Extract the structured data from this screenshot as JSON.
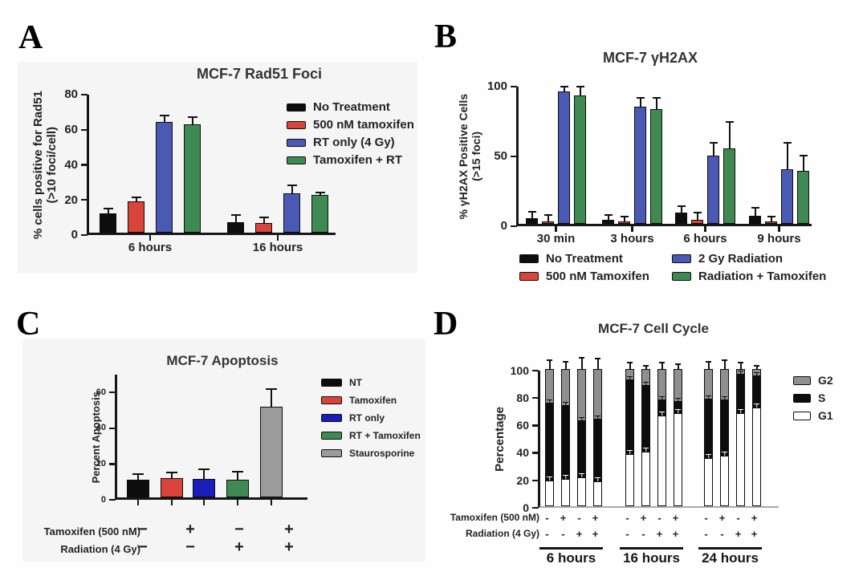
{
  "panels": {
    "a": {
      "letter": "A"
    },
    "b": {
      "letter": "B"
    },
    "c": {
      "letter": "C"
    },
    "d": {
      "letter": "D"
    }
  },
  "chart_data": [
    {
      "type": "bar",
      "title": "MCF-7 Rad51 Foci",
      "ylabel": [
        "% cells positive for Rad51",
        "(>10 foci/cell)"
      ],
      "categories": [
        "6 hours",
        "16 hours"
      ],
      "series": [
        {
          "name": "No Treatment",
          "color": "#0d0d0d",
          "values": [
            11,
            6
          ],
          "errors": [
            3,
            4.5
          ]
        },
        {
          "name": "500 nM tamoxifen",
          "color": "#d9453a",
          "values": [
            18,
            5.5
          ],
          "errors": [
            2.5,
            3.5
          ]
        },
        {
          "name": "RT only (4 Gy)",
          "color": "#4a5ab4",
          "values": [
            63,
            22.5
          ],
          "errors": [
            4,
            5
          ]
        },
        {
          "name": "Tamoxifen + RT",
          "color": "#3e8a52",
          "values": [
            61.5,
            21.5
          ],
          "errors": [
            5,
            2
          ]
        }
      ],
      "ylim": [
        0,
        80
      ],
      "yticks": [
        0,
        20,
        40,
        60,
        80
      ],
      "legend_position": "right",
      "grid": false
    },
    {
      "type": "bar",
      "title": "MCF-7 γH2AX",
      "ylabel": [
        "% γH2AX Positive Cells",
        "(>15 foci)"
      ],
      "categories": [
        "30 min",
        "3 hours",
        "6 hours",
        "9 hours"
      ],
      "series": [
        {
          "name": "No Treatment",
          "color": "#0d0d0d",
          "values": [
            4,
            3,
            8,
            6
          ],
          "errors": [
            5,
            4,
            5,
            6
          ]
        },
        {
          "name": "500 nM Tamoxifen",
          "color": "#d9453a",
          "values": [
            2,
            1.5,
            3,
            2
          ],
          "errors": [
            5,
            4,
            5.5,
            4
          ]
        },
        {
          "name": "2 Gy Radiation",
          "color": "#4a5ab4",
          "values": [
            95,
            84,
            49,
            39
          ],
          "errors": [
            4,
            7,
            9.5,
            19.5
          ]
        },
        {
          "name": "Radiation + Tamoxifen",
          "color": "#3e8a52",
          "values": [
            92,
            82,
            54,
            38
          ],
          "errors": [
            7,
            9,
            19.5,
            11.5
          ]
        }
      ],
      "ylim": [
        0,
        100
      ],
      "yticks": [
        0,
        50,
        100
      ],
      "legend_position": "bottom",
      "grid": false
    },
    {
      "type": "bar",
      "title": "MCF-7 Apoptosis",
      "ylabel": [
        "Percent Apoptosis"
      ],
      "bars": [
        {
          "label": "NT",
          "color": "#0d0d0d",
          "value": 10,
          "error": 3.5
        },
        {
          "label": "Tamoxifen",
          "color": "#d9453a",
          "value": 11,
          "error": 3.5
        },
        {
          "label": "RT only",
          "color": "#1c1cba",
          "value": 10.5,
          "error": 5.5
        },
        {
          "label": "RT + Tamoxifen",
          "color": "#3e8a52",
          "value": 10,
          "error": 5
        },
        {
          "label": "Staurosporine",
          "color": "#9b9b9b",
          "value": 50.5,
          "error": 10.5
        }
      ],
      "ylim": [
        0,
        70
      ],
      "yticks": [
        0,
        20,
        40,
        60
      ],
      "legend_position": "right",
      "treatment_rows": [
        {
          "label": "Tamoxifen (500 nM)",
          "signs": [
            "−",
            "+",
            "−",
            "+"
          ]
        },
        {
          "label": "Radiation (4 Gy)",
          "signs": [
            "−",
            "−",
            "+",
            "+"
          ]
        }
      ],
      "grid": false
    },
    {
      "type": "bar",
      "stacked": true,
      "title": "MCF-7 Cell Cycle",
      "ylabel": [
        "Percentage"
      ],
      "ylim": [
        0,
        100
      ],
      "yticks": [
        0,
        20,
        40,
        60,
        80,
        100
      ],
      "legend": [
        {
          "name": "G2",
          "color": "#8f8f8f"
        },
        {
          "name": "S",
          "color": "#0d0d0d"
        },
        {
          "name": "G1",
          "color": "#ffffff"
        }
      ],
      "legend_position": "right",
      "row_labels": [
        "Tamoxifen (500 nM)",
        "Radiation (4 Gy)"
      ],
      "groups": [
        {
          "label": "6 hours",
          "bars": [
            {
              "tam": "-",
              "rad": "-",
              "g1": 19,
              "s": 56,
              "g2": 25,
              "error": 7
            },
            {
              "tam": "+",
              "rad": "-",
              "g1": 20,
              "s": 53,
              "g2": 27,
              "error": 6
            },
            {
              "tam": "-",
              "rad": "+",
              "g1": 21,
              "s": 41,
              "g2": 38,
              "error": 9
            },
            {
              "tam": "+",
              "rad": "+",
              "g1": 18,
              "s": 45,
              "g2": 37,
              "error": 8
            }
          ]
        },
        {
          "label": "16 hours",
          "bars": [
            {
              "tam": "-",
              "rad": "-",
              "g1": 38,
              "s": 54,
              "g2": 8,
              "error": 5
            },
            {
              "tam": "+",
              "rad": "-",
              "g1": 40,
              "s": 48,
              "g2": 12,
              "error": 3
            },
            {
              "tam": "-",
              "rad": "+",
              "g1": 66,
              "s": 11,
              "g2": 23,
              "error": 5
            },
            {
              "tam": "+",
              "rad": "+",
              "g1": 68,
              "s": 8,
              "g2": 24,
              "error": 4
            }
          ]
        },
        {
          "label": "24 hours",
          "bars": [
            {
              "tam": "-",
              "rad": "-",
              "g1": 35,
              "s": 43,
              "g2": 22,
              "error": 6
            },
            {
              "tam": "+",
              "rad": "-",
              "g1": 37,
              "s": 40,
              "g2": 23,
              "error": 7
            },
            {
              "tam": "-",
              "rad": "+",
              "g1": 68,
              "s": 28,
              "g2": 4,
              "error": 5
            },
            {
              "tam": "+",
              "rad": "+",
              "g1": 72,
              "s": 23,
              "g2": 5,
              "error": 3
            }
          ]
        }
      ],
      "grid": false
    }
  ]
}
